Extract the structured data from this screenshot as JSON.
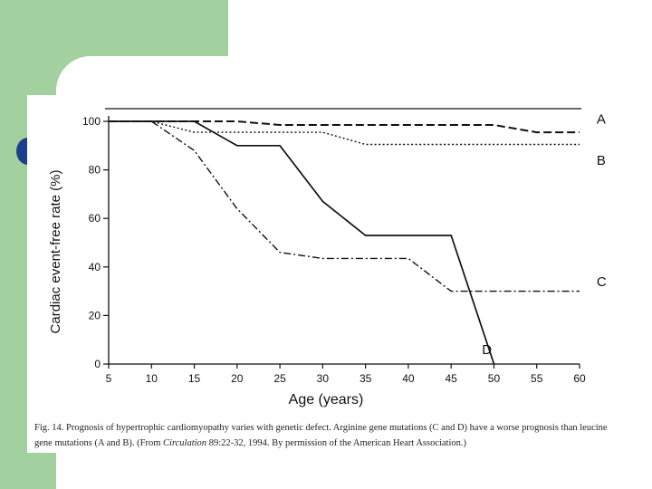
{
  "theme": {
    "green": "#a3d09f",
    "bullet": "#1c3f8e",
    "ink": "#111111"
  },
  "caption": {
    "lead": "Fig. 14.  Prognosis of hypertrophic cardiomyopathy varies with genetic defect.  Arginine gene mutations (C and D) have a worse prognosis than leucine gene mutations (A and B).  (From ",
    "journal": "Circulation",
    "tail": " 89:22-32, 1994.  By permission of the American Heart Association.)"
  },
  "chart_data": {
    "type": "line",
    "title": "",
    "xlabel": "Age (years)",
    "ylabel": "Cardiac event-free rate (%)",
    "xlim": [
      5,
      60
    ],
    "ylim": [
      0,
      100
    ],
    "xticks": [
      5,
      10,
      15,
      20,
      25,
      30,
      35,
      40,
      45,
      50,
      55,
      60
    ],
    "yticks": [
      0,
      20,
      40,
      60,
      80,
      100
    ],
    "grid": false,
    "legend": "inline labels at line ends",
    "series": [
      {
        "name": "A",
        "style": "dashed",
        "points": [
          [
            5,
            100
          ],
          [
            20,
            100
          ],
          [
            25,
            98.5
          ],
          [
            50,
            98.5
          ],
          [
            55,
            95.5
          ],
          [
            60,
            95.5
          ]
        ],
        "label_at": [
          62,
          101
        ]
      },
      {
        "name": "B",
        "style": "dotted",
        "points": [
          [
            5,
            100
          ],
          [
            10,
            100
          ],
          [
            15,
            95.5
          ],
          [
            30,
            95.5
          ],
          [
            35,
            90.5
          ],
          [
            60,
            90.5
          ]
        ],
        "label_at": [
          62,
          84
        ]
      },
      {
        "name": "C",
        "style": "dashdot",
        "points": [
          [
            5,
            100
          ],
          [
            10,
            100
          ],
          [
            15,
            88
          ],
          [
            20,
            64
          ],
          [
            25,
            46
          ],
          [
            30,
            43.5
          ],
          [
            40,
            43.5
          ],
          [
            45,
            30
          ],
          [
            60,
            30
          ]
        ],
        "label_at": [
          62,
          34
        ]
      },
      {
        "name": "D",
        "style": "solid",
        "points": [
          [
            5,
            100
          ],
          [
            15,
            100
          ],
          [
            20,
            90
          ],
          [
            25,
            90
          ],
          [
            30,
            67
          ],
          [
            35,
            53
          ],
          [
            45,
            53
          ],
          [
            50,
            0
          ]
        ],
        "label_at": [
          48.6,
          6
        ]
      }
    ]
  }
}
